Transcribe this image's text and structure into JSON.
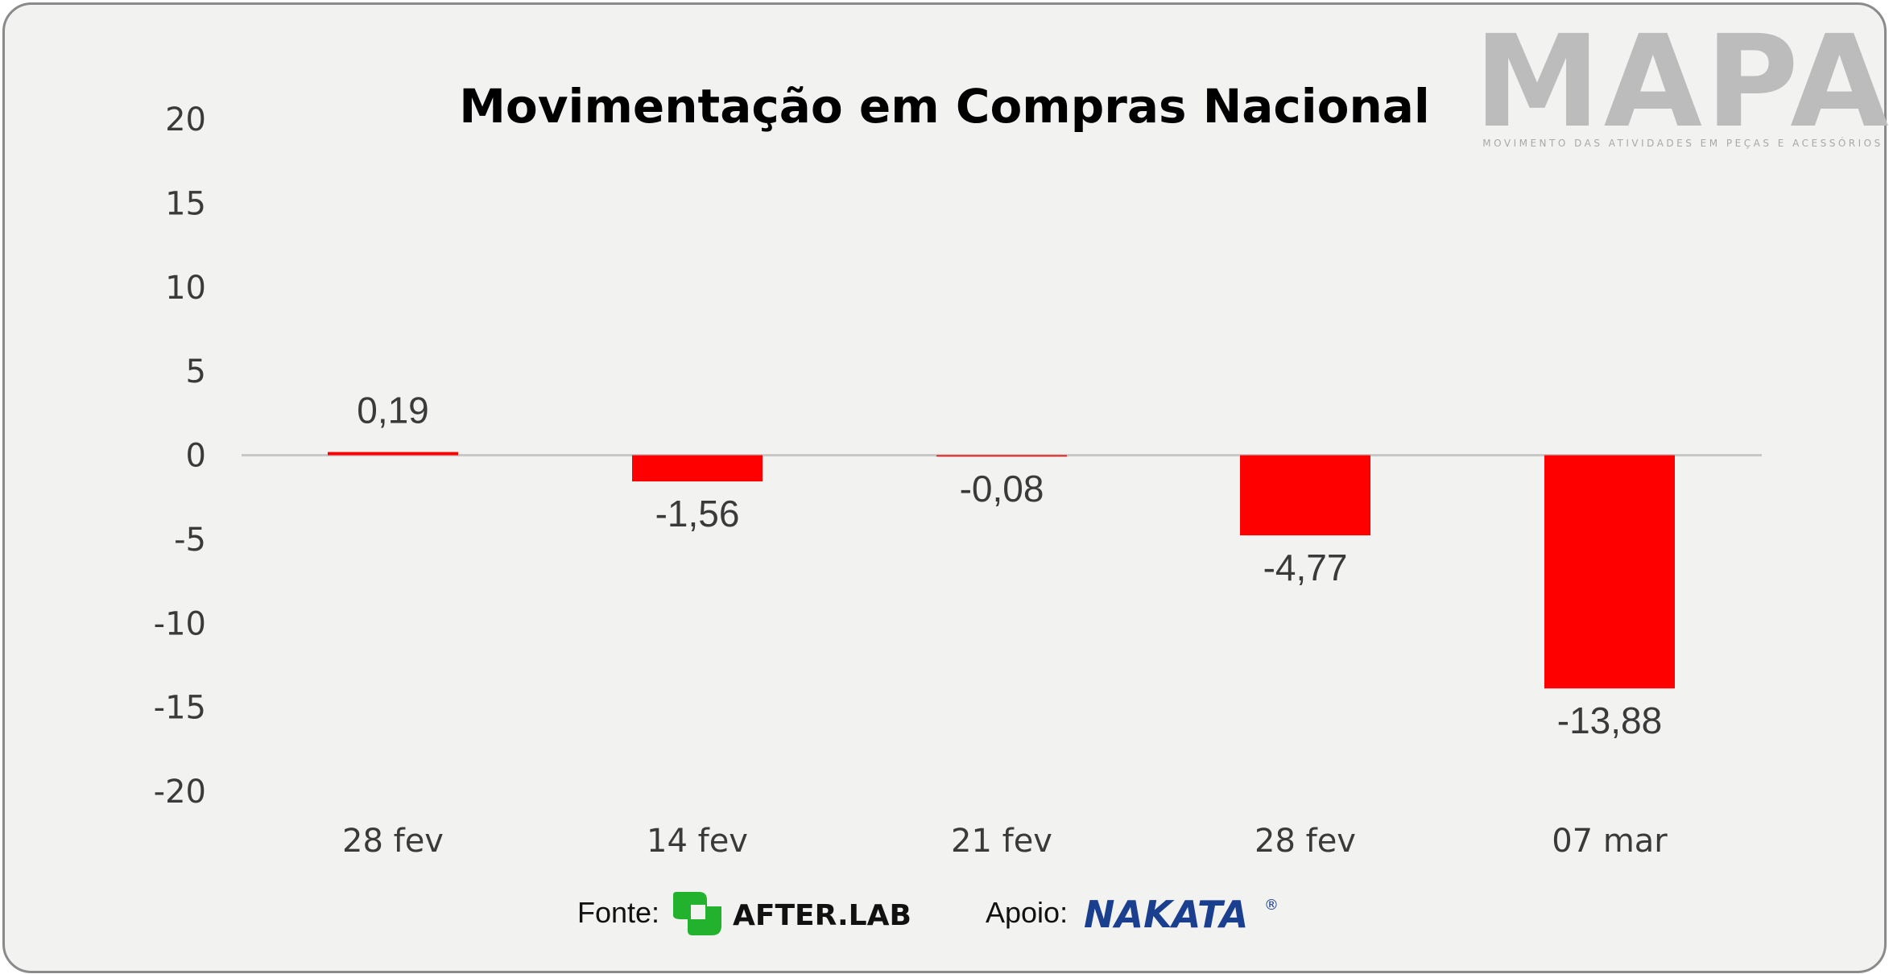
{
  "chart_data": {
    "type": "bar",
    "title": "Movimentação em Compras Nacional",
    "categories": [
      "28 fev",
      "14 fev",
      "21 fev",
      "28 fev",
      "07 mar"
    ],
    "values": [
      0.19,
      -1.56,
      -0.08,
      -4.77,
      -13.88
    ],
    "value_labels": [
      "0,19",
      "-1,56",
      "-0,08",
      "-4,77",
      "-13,88"
    ],
    "ylim": [
      -20,
      20
    ],
    "yticks": [
      20,
      15,
      10,
      5,
      0,
      -5,
      -10,
      -15,
      -20
    ],
    "bar_color": "#ff0000",
    "grid": false,
    "legend": "none"
  },
  "logo": {
    "name": "MAPA",
    "tagline": "MOVIMENTO DAS ATIVIDADES EM PEÇAS E ACESSÓRIOS"
  },
  "footer": {
    "source_label": "Fonte:",
    "source_name": "AFTER.LAB",
    "support_label": "Apoio:",
    "support_name": "NAKATA",
    "support_mark": "®"
  },
  "colors": {
    "background": "#f2f2f1",
    "border": "#8a8a8a",
    "afterlab_green": "#22b22e",
    "nakata_blue": "#1b3f8f"
  }
}
